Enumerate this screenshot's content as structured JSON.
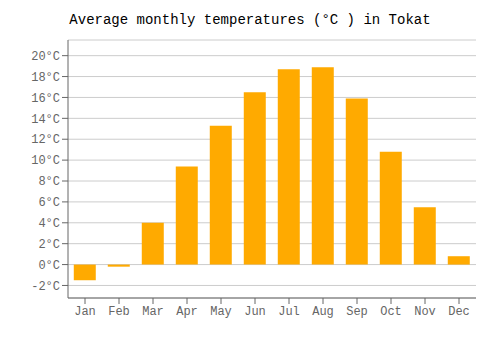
{
  "chart_data": {
    "type": "bar",
    "title": "Average monthly temperatures (°C ) in Tokat",
    "categories": [
      "Jan",
      "Feb",
      "Mar",
      "Apr",
      "May",
      "Jun",
      "Jul",
      "Aug",
      "Sep",
      "Oct",
      "Nov",
      "Dec"
    ],
    "values": [
      -1.5,
      -0.2,
      4.0,
      9.4,
      13.3,
      16.5,
      18.7,
      18.9,
      15.9,
      10.8,
      5.5,
      0.8
    ],
    "color": "#FFAA00",
    "ylim": [
      -3.2,
      21.5
    ],
    "yticks": [
      {
        "value": -2,
        "label": "-2°C"
      },
      {
        "value": 0,
        "label": "0°C"
      },
      {
        "value": 2,
        "label": "2°C"
      },
      {
        "value": 4,
        "label": "4°C"
      },
      {
        "value": 6,
        "label": "6°C"
      },
      {
        "value": 8,
        "label": "8°C"
      },
      {
        "value": 10,
        "label": "10°C"
      },
      {
        "value": 12,
        "label": "12°C"
      },
      {
        "value": 14,
        "label": "14°C"
      },
      {
        "value": 16,
        "label": "16°C"
      },
      {
        "value": 18,
        "label": "18°C"
      },
      {
        "value": 20,
        "label": "20°C"
      }
    ],
    "grid": true
  }
}
